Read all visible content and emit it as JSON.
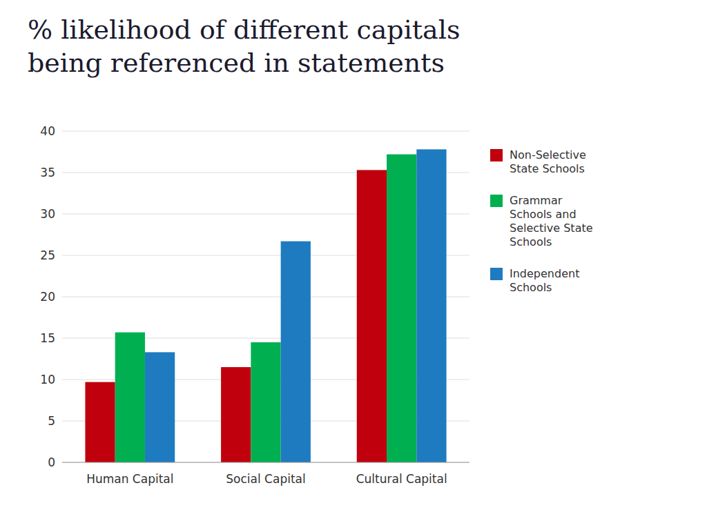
{
  "chart_data": {
    "type": "bar",
    "title": "% likelihood of different capitals\nbeing referenced in statements",
    "categories": [
      "Human Capital",
      "Social Capital",
      "Cultural Capital"
    ],
    "series": [
      {
        "name": "Non-Selective\nState Schools",
        "color": "#c0000c",
        "values": [
          9.7,
          11.5,
          35.3
        ]
      },
      {
        "name": "Grammar\nSchools and\nSelective State\nSchools",
        "color": "#00b050",
        "values": [
          15.7,
          14.5,
          37.2
        ]
      },
      {
        "name": "Independent\nSchools",
        "color": "#1f7bc0",
        "values": [
          13.3,
          26.7,
          37.8
        ]
      }
    ],
    "ylim": [
      0,
      40
    ],
    "yticks": [
      0,
      5,
      10,
      15,
      20,
      25,
      30,
      35,
      40
    ],
    "grid": true,
    "legend": "right"
  }
}
